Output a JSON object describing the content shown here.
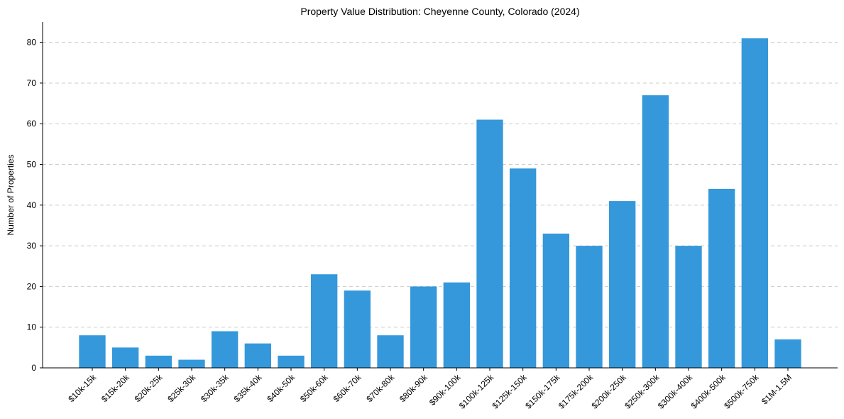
{
  "chart_data": {
    "type": "bar",
    "title": "Property Value Distribution: Cheyenne County, Colorado (2024)",
    "xlabel": "",
    "ylabel": "Number of Properties",
    "ylim": [
      0,
      85
    ],
    "yticks": [
      0,
      10,
      20,
      30,
      40,
      50,
      60,
      70,
      80
    ],
    "grid": "y-dashed",
    "categories": [
      "$10k-15k",
      "$15k-20k",
      "$20k-25k",
      "$25k-30k",
      "$30k-35k",
      "$35k-40k",
      "$40k-50k",
      "$50k-60k",
      "$60k-70k",
      "$70k-80k",
      "$80k-90k",
      "$90k-100k",
      "$100k-125k",
      "$125k-150k",
      "$150k-175k",
      "$175k-200k",
      "$200k-250k",
      "$250k-300k",
      "$300k-400k",
      "$400k-500k",
      "$500k-750k",
      "$1M-1.5M"
    ],
    "values": [
      8,
      5,
      3,
      2,
      9,
      6,
      3,
      23,
      19,
      8,
      20,
      21,
      61,
      49,
      33,
      30,
      41,
      67,
      30,
      44,
      81,
      7
    ],
    "bar_color": "#3498db"
  }
}
